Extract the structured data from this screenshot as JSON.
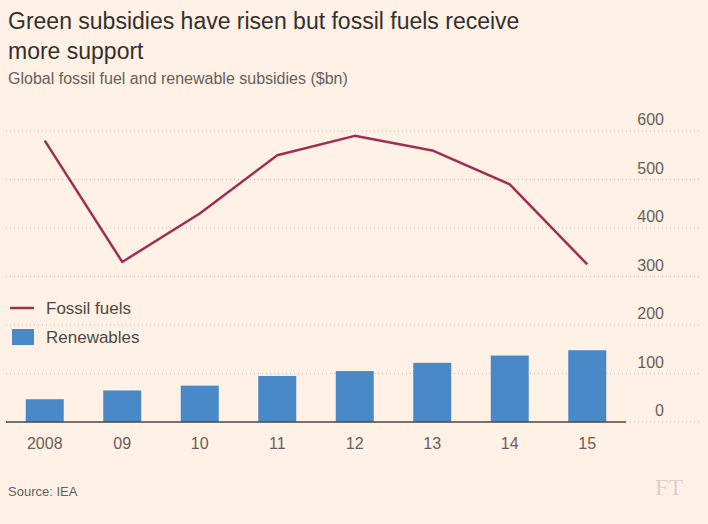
{
  "chart_data": {
    "type": "bar",
    "title": "Green subsidies have risen but fossil fuels receive more support",
    "subtitle": "Global fossil fuel and renewable subsidies ($bn)",
    "source": "Source: IEA",
    "logo": "FT",
    "categories": [
      "2008",
      "09",
      "10",
      "11",
      "12",
      "13",
      "14",
      "15"
    ],
    "series": [
      {
        "name": "Fossil fuels",
        "type": "line",
        "color": "#9e2f50",
        "values": [
          580,
          330,
          430,
          550,
          590,
          560,
          490,
          325
        ]
      },
      {
        "name": "Renewables",
        "type": "bar",
        "color": "#4a89c8",
        "values": [
          47,
          65,
          75,
          95,
          105,
          122,
          137,
          148
        ]
      }
    ],
    "ylim": [
      0,
      600
    ],
    "yticks": [
      0,
      100,
      200,
      300,
      400,
      500,
      600
    ],
    "grid": true,
    "legend": "left"
  }
}
